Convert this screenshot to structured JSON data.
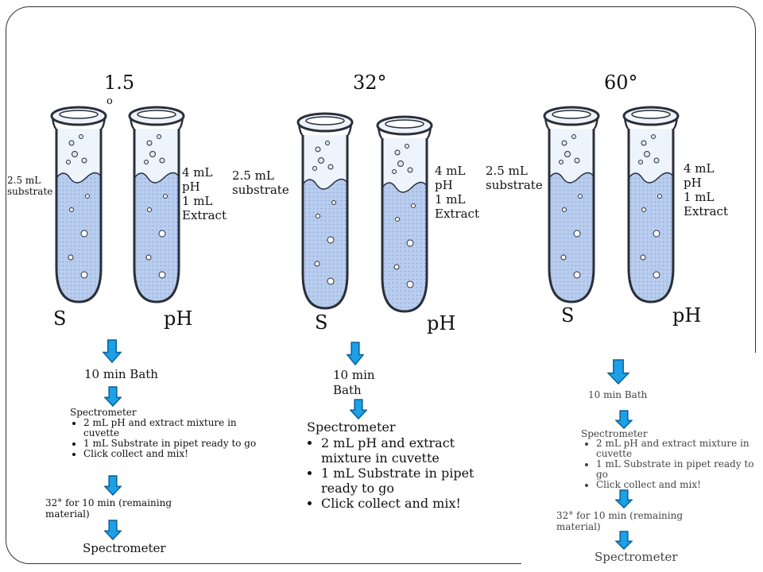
{
  "columns": [
    {
      "temperature": "1.5",
      "temperature_suffix": "o",
      "s_volume": "2.5 mL",
      "s_content": "substrate",
      "ph_line1": "4 mL",
      "ph_line2": "pH",
      "ph_line3": "1 mL",
      "ph_line4": "Extract",
      "s_letter": "S",
      "ph_letter": "pH"
    },
    {
      "temperature": "32°",
      "s_volume": "2.5 mL",
      "s_content": "substrate",
      "ph_line1": "4 mL",
      "ph_line2": "pH",
      "ph_line3": "1 mL",
      "ph_line4": "Extract",
      "s_letter": "S",
      "ph_letter": "pH"
    },
    {
      "temperature": "60°",
      "s_volume": "2.5 mL",
      "s_content": "substrate",
      "ph_line1": "4 mL",
      "ph_line2": "pH",
      "ph_line3": "1 mL",
      "ph_line4": "Extract",
      "s_letter": "S",
      "ph_letter": "pH"
    }
  ],
  "procedures": [
    {
      "bath": "10 min Bath",
      "spectrometer": "Spectrometer",
      "bullets": [
        "2 mL pH and extract mixture in cuvette",
        "1 mL Substrate in pipet ready to go",
        "Click collect and mix!"
      ],
      "incubation": "32° for 10 min (remaining material)",
      "final": "Spectrometer"
    },
    {
      "bath_line1": "10 min",
      "bath_line2": "Bath",
      "spectrometer": "Spectrometer",
      "bullets": [
        "2 mL pH and extract mixture  in cuvette",
        "1 mL Substrate in pipet ready to go",
        "Click collect and mix!"
      ]
    },
    {
      "bath": "10 min Bath",
      "spectrometer": "Spectrometer",
      "bullets": [
        "2 mL pH and extract mixture in cuvette",
        "1 mL Substrate in pipet ready to go",
        "Click collect and mix!"
      ],
      "incubation": "32° for 10 min (remaining material)",
      "final": "Spectrometer"
    }
  ],
  "colors": {
    "liquid": "#b9cdef",
    "liquid_dots": "#8fa9dc",
    "glass": "#eef4fb",
    "outline": "#2a2f3a",
    "arrow_fill": "#1aa1e6",
    "arrow_stroke": "#0b5f99"
  }
}
